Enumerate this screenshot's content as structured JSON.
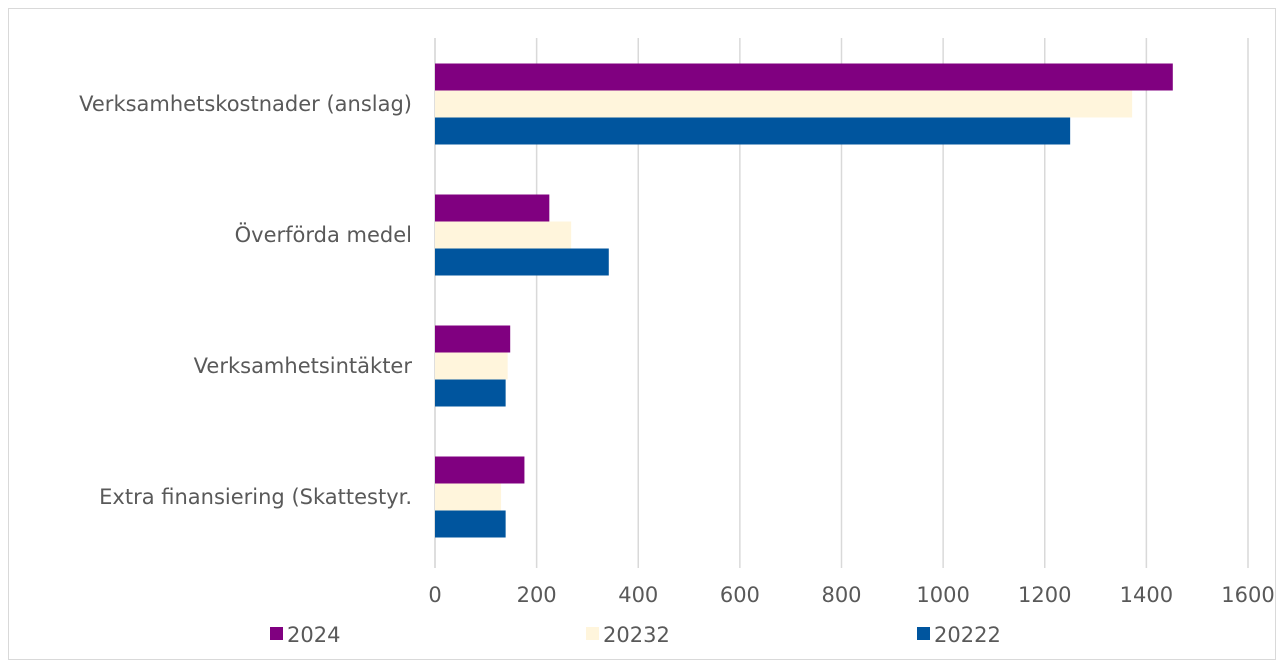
{
  "chart_data": {
    "type": "bar",
    "orientation": "horizontal",
    "categories": [
      "Verksamhetskostnader (anslag)",
      "Överförda medel",
      "Verksamhetsintäkter",
      "Extra finansiering (Skattestyr."
    ],
    "series": [
      {
        "name": "2024",
        "color": "#800080",
        "values": [
          1452,
          225,
          148,
          176
        ]
      },
      {
        "name": "20232",
        "color": "#FFF5DC",
        "values": [
          1372,
          268,
          143,
          130
        ]
      },
      {
        "name": "20222",
        "color": "#00559E",
        "values": [
          1250,
          342,
          139,
          139
        ]
      }
    ],
    "xlim": [
      0,
      1600
    ],
    "xticks": [
      "0",
      "200",
      "400",
      "600",
      "800",
      "1000",
      "1200",
      "1400",
      "1600"
    ],
    "grid": true,
    "legend_position": "bottom",
    "title": "",
    "xlabel": "",
    "ylabel": ""
  }
}
